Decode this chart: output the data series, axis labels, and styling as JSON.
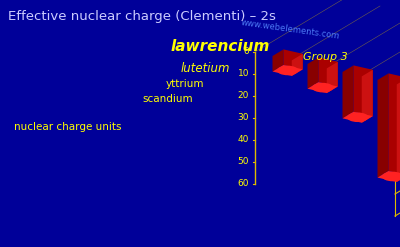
{
  "title": "Effective nuclear charge (Clementi) – 2s",
  "elements": [
    "scandium",
    "yttrium",
    "lutetium",
    "lawrencium"
  ],
  "values": [
    7.07,
    11.23,
    21.07,
    44.35
  ],
  "ylabel": "nuclear charge units",
  "group_label": "Group 3",
  "watermark": "www.webelements.com",
  "ylim": [
    0,
    60
  ],
  "yticks": [
    0,
    10,
    20,
    30,
    40,
    50,
    60
  ],
  "background_color": "#000099",
  "bar_color_top": "#ff2222",
  "bar_color_side": "#aa0000",
  "bar_color_dark": "#880000",
  "grid_color": "#ddbb00",
  "title_color": "#ccccff",
  "label_color": "#ffff00",
  "watermark_color": "#5588ff",
  "title_fontsize": 9.5,
  "label_fontsize": 8
}
